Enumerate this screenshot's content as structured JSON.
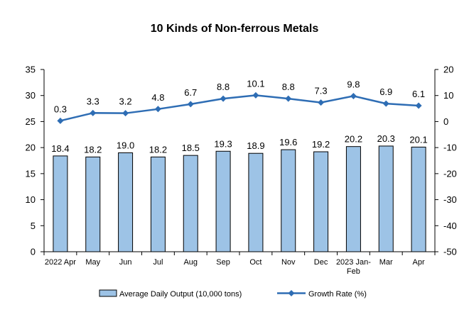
{
  "chart_data": {
    "type": "bar+line",
    "title": "10 Kinds of Non-ferrous Metals",
    "categories": [
      [
        "2022 Apr"
      ],
      [
        "May"
      ],
      [
        "Jun"
      ],
      [
        "Jul"
      ],
      [
        "Aug"
      ],
      [
        "Sep"
      ],
      [
        "Oct"
      ],
      [
        "Nov"
      ],
      [
        "Dec"
      ],
      [
        "2023 Jan-",
        "Feb"
      ],
      [
        "Mar"
      ],
      [
        "Apr"
      ]
    ],
    "series": [
      {
        "name": "Average Daily Output (10,000 tons)",
        "type": "bar",
        "axis": "left",
        "values": [
          18.4,
          18.2,
          19.0,
          18.2,
          18.5,
          19.3,
          18.9,
          19.6,
          19.2,
          20.2,
          20.3,
          20.1
        ],
        "labels": [
          "18.4",
          "18.2",
          "19.0",
          "18.2",
          "18.5",
          "19.3",
          "18.9",
          "19.6",
          "19.2",
          "20.2",
          "20.3",
          "20.1"
        ],
        "color": "#9dc3e6",
        "edge": "#000000"
      },
      {
        "name": "Growth Rate (%)",
        "type": "line",
        "axis": "right",
        "values": [
          0.3,
          3.3,
          3.2,
          4.8,
          6.7,
          8.8,
          10.1,
          8.8,
          7.3,
          9.8,
          6.9,
          6.1
        ],
        "labels": [
          "0.3",
          "3.3",
          "3.2",
          "4.8",
          "6.7",
          "8.8",
          "10.1",
          "8.8",
          "7.3",
          "9.8",
          "6.9",
          "6.1"
        ],
        "color": "#2e6db4"
      }
    ],
    "left_axis": {
      "min": 0,
      "max": 35,
      "step": 5
    },
    "right_axis": {
      "min": -50,
      "max": 20,
      "step": 10
    },
    "grid": false,
    "legend_position": "bottom"
  }
}
